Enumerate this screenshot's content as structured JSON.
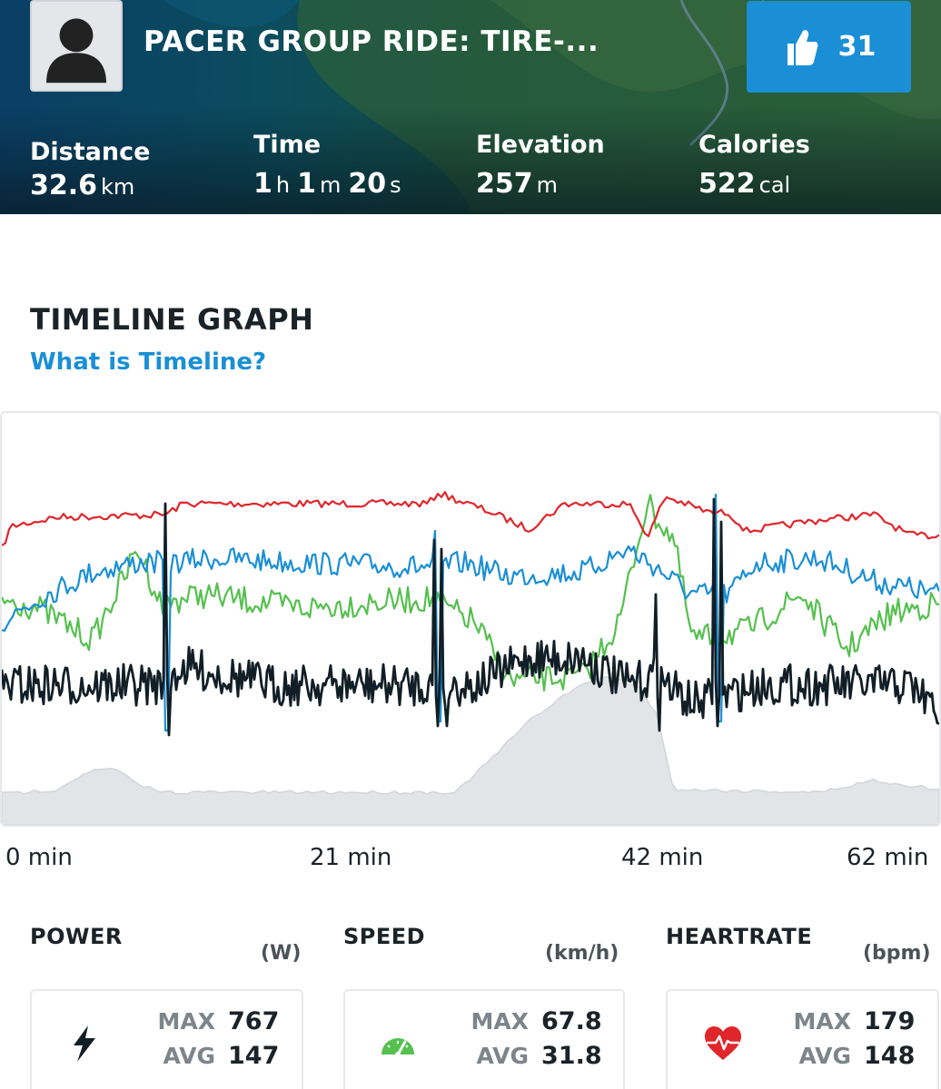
{
  "header": {
    "ride_title": "PACER GROUP RIDE: TIRE-...",
    "likes": "31",
    "stats": [
      {
        "label": "Distance",
        "parts": [
          {
            "num": "32.6",
            "unit": "km"
          }
        ]
      },
      {
        "label": "Time",
        "parts": [
          {
            "num": "1",
            "unit": "h"
          },
          {
            "num": "1",
            "unit": "m"
          },
          {
            "num": "20",
            "unit": "s"
          }
        ]
      },
      {
        "label": "Elevation",
        "parts": [
          {
            "num": "257",
            "unit": "m"
          }
        ]
      },
      {
        "label": "Calories",
        "parts": [
          {
            "num": "522",
            "unit": "cal"
          }
        ]
      }
    ]
  },
  "timeline": {
    "title": "TIMELINE GRAPH",
    "link": "What is Timeline?",
    "axis": [
      "0 min",
      "21 min",
      "42 min",
      "62 min"
    ]
  },
  "colors": {
    "heartrate": "#e0262b",
    "speed": "#1a8fd6",
    "cadence": "#55c04e",
    "power": "#111e26",
    "elevation": "#e2e4e7",
    "accent": "#1a8fd6"
  },
  "metrics": [
    {
      "title": "POWER",
      "unit": "(W)",
      "icon": "lightning-bolt-icon",
      "max_label": "MAX",
      "max": "767",
      "avg_label": "AVG",
      "avg": "147"
    },
    {
      "title": "SPEED",
      "unit": "(km/h)",
      "icon": "speedometer-icon",
      "max_label": "MAX",
      "max": "67.8",
      "avg_label": "AVG",
      "avg": "31.8"
    },
    {
      "title": "HEARTRATE",
      "unit": "(bpm)",
      "icon": "heart-pulse-icon",
      "max_label": "MAX",
      "max": "179",
      "avg_label": "AVG",
      "avg": "148"
    }
  ]
}
